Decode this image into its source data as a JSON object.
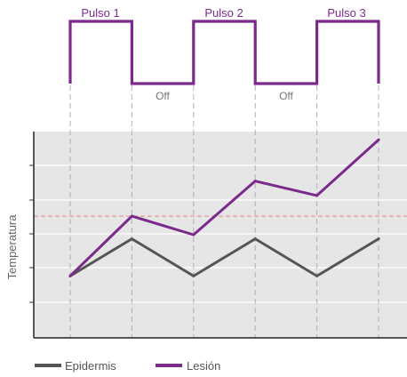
{
  "chart_data": {
    "type": "line",
    "title": "",
    "xlabel": "",
    "ylabel": "Temperatura",
    "pulse_labels": [
      "Pulso 1",
      "Pulso 2",
      "Pulso 3"
    ],
    "off_labels": [
      "Off",
      "Off"
    ],
    "x": [
      0,
      1,
      2,
      3,
      4,
      5
    ],
    "ylim": [
      0,
      10
    ],
    "threshold": 5.9,
    "series": [
      {
        "name": "Epidermis",
        "color": "#555555",
        "values": [
          3.0,
          4.8,
          3.0,
          4.8,
          3.0,
          4.8
        ]
      },
      {
        "name": "Lesión",
        "color": "#7b2a8c",
        "values": [
          3.0,
          5.9,
          5.0,
          7.6,
          6.9,
          9.6
        ]
      }
    ],
    "grid": true,
    "legend": "bottom-left",
    "colors": {
      "pulse": "#7b2a8c",
      "plot_bg": "#e6e6e6",
      "threshold": "#e08a8a",
      "guide": "#b0b0b0"
    }
  }
}
